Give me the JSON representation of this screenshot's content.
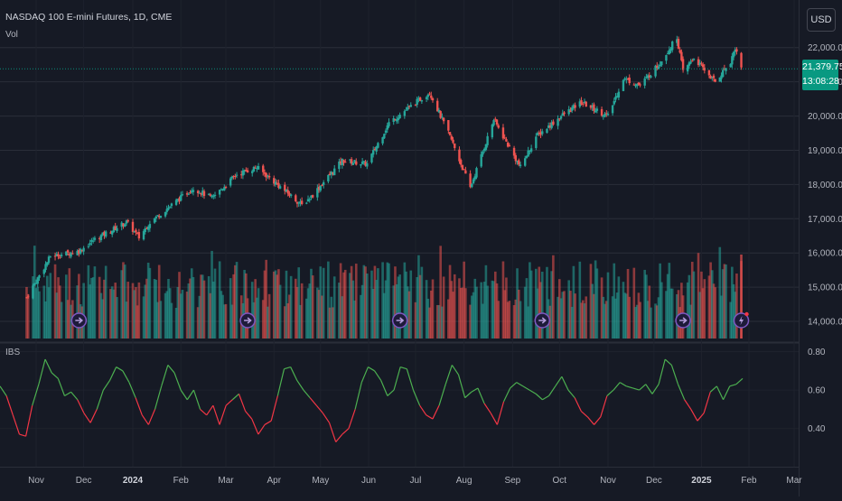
{
  "chart_data": {
    "type": "candlestick",
    "title": "NASDAQ 100 E-mini Futures, 1D, CME",
    "price_axis": {
      "currency": "USD",
      "ticks": [
        "22,000.00",
        "21,000.00",
        "20,000.00",
        "19,000.00",
        "18,000.00",
        "17,000.00",
        "16,000.00",
        "15,000.00",
        "14,000.00"
      ],
      "ylim": [
        13500,
        22600
      ]
    },
    "last_price": "21,379.75",
    "countdown": "13:08:28",
    "volume_label": "Vol",
    "x_axis_ticks": [
      "Nov",
      "Dec",
      "2024",
      "Feb",
      "Mar",
      "Apr",
      "May",
      "Jun",
      "Jul",
      "Aug",
      "Sep",
      "Oct",
      "Nov",
      "Dec",
      "2025",
      "Feb",
      "Mar"
    ],
    "price_path": {
      "dates": [
        "2023-10-26",
        "2023-11-10",
        "2023-11-28",
        "2023-12-08",
        "2023-12-28",
        "2024-01-05",
        "2024-01-12",
        "2024-02-09",
        "2024-02-21",
        "2024-03-08",
        "2024-03-21",
        "2024-04-19",
        "2024-04-26",
        "2024-05-15",
        "2024-05-31",
        "2024-06-14",
        "2024-07-10",
        "2024-07-24",
        "2024-08-05",
        "2024-08-20",
        "2024-09-06",
        "2024-09-16",
        "2024-10-02",
        "2024-10-15",
        "2024-11-01",
        "2024-11-11",
        "2024-11-22",
        "2024-12-04",
        "2024-12-16",
        "2024-12-20",
        "2024-12-27",
        "2025-01-10",
        "2025-01-20",
        "2025-01-23",
        "2025-01-27"
      ],
      "close": [
        14700,
        15900,
        16050,
        16400,
        16900,
        16450,
        16900,
        17900,
        17600,
        18300,
        18500,
        17400,
        17700,
        18700,
        18600,
        19800,
        20700,
        19300,
        17900,
        19900,
        18500,
        19400,
        20000,
        20400,
        20000,
        21100,
        20900,
        21500,
        22300,
        21300,
        21700,
        21000,
        21600,
        22000,
        21400
      ]
    },
    "ibs": {
      "label": "IBS",
      "axis_ticks": [
        "0.80",
        "0.60",
        "0.40"
      ],
      "ylim": [
        0.3,
        0.84
      ],
      "threshold": 0.55,
      "colors": {
        "above": "#4caf50",
        "below": "#f23645"
      },
      "values": [
        0.62,
        0.57,
        0.47,
        0.37,
        0.36,
        0.52,
        0.63,
        0.76,
        0.69,
        0.66,
        0.57,
        0.59,
        0.55,
        0.48,
        0.43,
        0.5,
        0.6,
        0.65,
        0.72,
        0.7,
        0.64,
        0.56,
        0.47,
        0.42,
        0.5,
        0.62,
        0.73,
        0.69,
        0.6,
        0.55,
        0.6,
        0.5,
        0.47,
        0.52,
        0.42,
        0.52,
        0.55,
        0.58,
        0.49,
        0.45,
        0.37,
        0.42,
        0.44,
        0.57,
        0.71,
        0.72,
        0.65,
        0.6,
        0.56,
        0.52,
        0.48,
        0.43,
        0.33,
        0.37,
        0.4,
        0.5,
        0.64,
        0.72,
        0.7,
        0.65,
        0.57,
        0.6,
        0.72,
        0.71,
        0.6,
        0.52,
        0.47,
        0.45,
        0.52,
        0.63,
        0.73,
        0.68,
        0.56,
        0.59,
        0.61,
        0.53,
        0.48,
        0.42,
        0.54,
        0.61,
        0.64,
        0.62,
        0.6,
        0.58,
        0.55,
        0.57,
        0.62,
        0.67,
        0.6,
        0.56,
        0.49,
        0.46,
        0.42,
        0.46,
        0.57,
        0.6,
        0.64,
        0.62,
        0.61,
        0.6,
        0.63,
        0.58,
        0.63,
        0.76,
        0.73,
        0.63,
        0.55,
        0.5,
        0.44,
        0.48,
        0.59,
        0.62,
        0.55,
        0.62,
        0.63,
        0.66
      ]
    },
    "event_markers": [
      {
        "date": "2023-11-28",
        "icon": "earnings-arrow-icon"
      },
      {
        "date": "2024-03-15",
        "icon": "earnings-arrow-icon"
      },
      {
        "date": "2024-06-21",
        "icon": "earnings-arrow-icon"
      },
      {
        "date": "2024-09-20",
        "icon": "earnings-arrow-icon"
      },
      {
        "date": "2024-12-20",
        "icon": "earnings-arrow-icon"
      },
      {
        "date": "2025-01-27",
        "icon": "lightning-icon"
      }
    ],
    "colors": {
      "up": "#26a69a",
      "down": "#ef5350",
      "background": "#161a25",
      "grid": "#2a2e39",
      "last_price": "#089981",
      "event_ring": "#7e57c2"
    }
  }
}
